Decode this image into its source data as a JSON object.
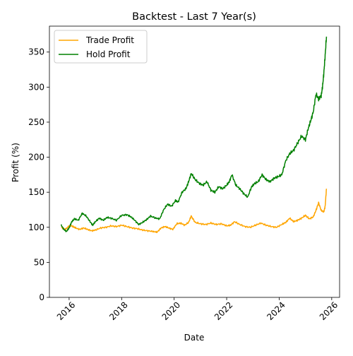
{
  "chart_data": {
    "type": "line",
    "title": "Backtest - Last 7 Year(s)",
    "xlabel": "Date",
    "ylabel": "Profit (%)",
    "x_ticks": [
      2016,
      2018,
      2020,
      2022,
      2024,
      2026
    ],
    "x_tick_labels": [
      "2016",
      "2018",
      "2020",
      "2022",
      "2024",
      "2026"
    ],
    "xlim": [
      2015.25,
      2026.3
    ],
    "y_ticks": [
      0,
      50,
      100,
      150,
      200,
      250,
      300,
      350
    ],
    "y_tick_labels": [
      "0",
      "50",
      "100",
      "150",
      "200",
      "250",
      "300",
      "350"
    ],
    "ylim": [
      0,
      387
    ],
    "grid": false,
    "legend_position": "upper-left",
    "series": [
      {
        "name": "Trade Profit",
        "color": "#ffa500",
        "x": [
          2015.7,
          2015.85,
          2015.95,
          2016.05,
          2016.15,
          2016.25,
          2016.4,
          2016.55,
          2016.7,
          2016.85,
          2017.0,
          2017.2,
          2017.4,
          2017.6,
          2017.8,
          2018.0,
          2018.2,
          2018.4,
          2018.6,
          2018.8,
          2019.0,
          2019.2,
          2019.35,
          2019.5,
          2019.65,
          2019.8,
          2019.95,
          2020.1,
          2020.25,
          2020.4,
          2020.55,
          2020.65,
          2020.8,
          2021.0,
          2021.2,
          2021.4,
          2021.6,
          2021.8,
          2022.0,
          2022.15,
          2022.3,
          2022.5,
          2022.7,
          2022.9,
          2023.1,
          2023.3,
          2023.5,
          2023.7,
          2023.9,
          2024.1,
          2024.25,
          2024.4,
          2024.55,
          2024.7,
          2024.85,
          2025.0,
          2025.15,
          2025.3,
          2025.4,
          2025.5,
          2025.6,
          2025.7,
          2025.75,
          2025.8
        ],
        "y": [
          100,
          97,
          100,
          103,
          101,
          99,
          97,
          99,
          97,
          95,
          96,
          99,
          100,
          102,
          101,
          103,
          101,
          99,
          98,
          96,
          95,
          94,
          93,
          99,
          101,
          99,
          97,
          105,
          106,
          103,
          107,
          116,
          107,
          105,
          104,
          106,
          104,
          105,
          102,
          103,
          108,
          104,
          101,
          100,
          103,
          106,
          103,
          101,
          100,
          104,
          107,
          113,
          108,
          110,
          113,
          117,
          112,
          115,
          124,
          135,
          124,
          122,
          130,
          155
        ]
      },
      {
        "name": "Hold Profit",
        "color": "#008000",
        "x": [
          2015.7,
          2015.8,
          2015.9,
          2016.0,
          2016.1,
          2016.2,
          2016.35,
          2016.5,
          2016.65,
          2016.8,
          2016.9,
          2017.0,
          2017.15,
          2017.3,
          2017.45,
          2017.6,
          2017.8,
          2018.0,
          2018.2,
          2018.35,
          2018.5,
          2018.65,
          2018.8,
          2018.95,
          2019.1,
          2019.3,
          2019.45,
          2019.6,
          2019.75,
          2019.9,
          2020.05,
          2020.15,
          2020.3,
          2020.45,
          2020.55,
          2020.65,
          2020.8,
          2020.95,
          2021.1,
          2021.25,
          2021.4,
          2021.55,
          2021.7,
          2021.85,
          2022.0,
          2022.1,
          2022.2,
          2022.35,
          2022.5,
          2022.65,
          2022.8,
          2022.95,
          2023.05,
          2023.2,
          2023.35,
          2023.5,
          2023.65,
          2023.8,
          2023.95,
          2024.1,
          2024.25,
          2024.4,
          2024.55,
          2024.7,
          2024.85,
          2025.0,
          2025.1,
          2025.2,
          2025.3,
          2025.4,
          2025.5,
          2025.6,
          2025.65,
          2025.7,
          2025.75,
          2025.8
        ],
        "y": [
          103,
          97,
          94,
          99,
          108,
          112,
          110,
          120,
          116,
          108,
          103,
          108,
          113,
          110,
          114,
          113,
          110,
          117,
          118,
          115,
          110,
          104,
          107,
          111,
          116,
          113,
          112,
          125,
          133,
          130,
          138,
          136,
          150,
          155,
          165,
          177,
          168,
          163,
          160,
          165,
          153,
          150,
          158,
          155,
          160,
          165,
          175,
          160,
          155,
          148,
          143,
          158,
          162,
          165,
          175,
          168,
          165,
          170,
          172,
          175,
          195,
          205,
          210,
          220,
          230,
          225,
          240,
          252,
          265,
          290,
          283,
          288,
          300,
          320,
          345,
          372
        ]
      }
    ]
  }
}
